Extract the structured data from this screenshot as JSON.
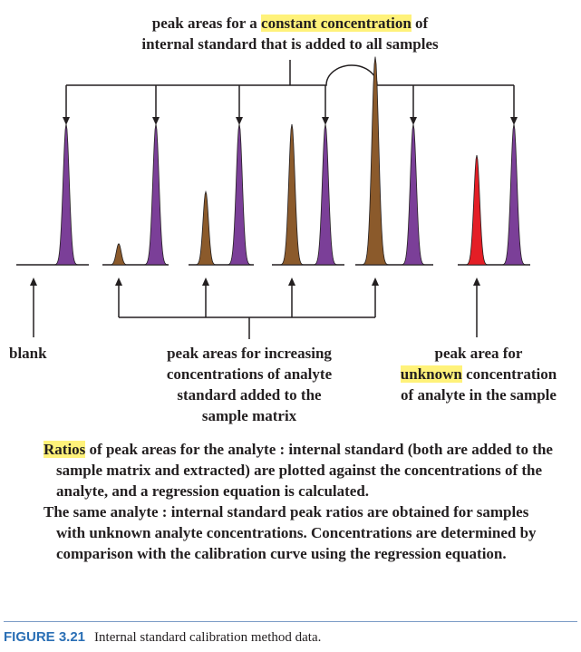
{
  "top_label": {
    "line1_pre": "peak areas for a ",
    "line1_highlight": "constant concentration",
    "line1_post": " of",
    "line2": "internal standard that is added to all samples"
  },
  "blank_label": "blank",
  "increasing_label": {
    "line1": "peak areas for increasing",
    "line2": "concentrations of analyte",
    "line3": "standard added to the",
    "line4": "sample matrix"
  },
  "unknown_label": {
    "line1": "peak area for",
    "line2_highlight": "unknown",
    "line2_post": " concentration",
    "line3": "of analyte in the sample"
  },
  "body": {
    "p1_highlight": "Ratios",
    "p1_rest": " of peak areas for the analyte : internal standard (both are added to the sample matrix and extracted) are plotted against the concentrations of the analyte, and a regression equation is calculated.",
    "p2": "The same analyte : internal standard peak ratios are obtained for samples with unknown analyte concentrations. Concentrations are determined by comparison with the calibration curve using the regression equation."
  },
  "caption": {
    "tag": "FIGURE 3.21",
    "text": "Internal standard calibration method data."
  },
  "colors": {
    "internal_standard": "#7b3f98",
    "analyte_standard": "#8b5a2b",
    "unknown_analyte": "#e41e26",
    "line": "#231f20",
    "highlight": "#fff27a",
    "caption_tag": "#2a6fb5"
  },
  "peaks": [
    {
      "group": "blank",
      "type": "internal_standard",
      "relative_height": 1.0
    },
    {
      "group": "standard_1",
      "type": "analyte",
      "relative_height": 0.15
    },
    {
      "group": "standard_1",
      "type": "internal_standard",
      "relative_height": 1.0
    },
    {
      "group": "standard_2",
      "type": "analyte",
      "relative_height": 0.52
    },
    {
      "group": "standard_2",
      "type": "internal_standard",
      "relative_height": 1.0
    },
    {
      "group": "standard_3",
      "type": "analyte",
      "relative_height": 1.0
    },
    {
      "group": "standard_3",
      "type": "internal_standard",
      "relative_height": 1.0
    },
    {
      "group": "standard_4",
      "type": "analyte",
      "relative_height": 1.48
    },
    {
      "group": "standard_4",
      "type": "internal_standard",
      "relative_height": 1.0
    },
    {
      "group": "unknown",
      "type": "unknown_analyte",
      "relative_height": 0.78
    },
    {
      "group": "unknown",
      "type": "internal_standard",
      "relative_height": 1.0
    }
  ]
}
